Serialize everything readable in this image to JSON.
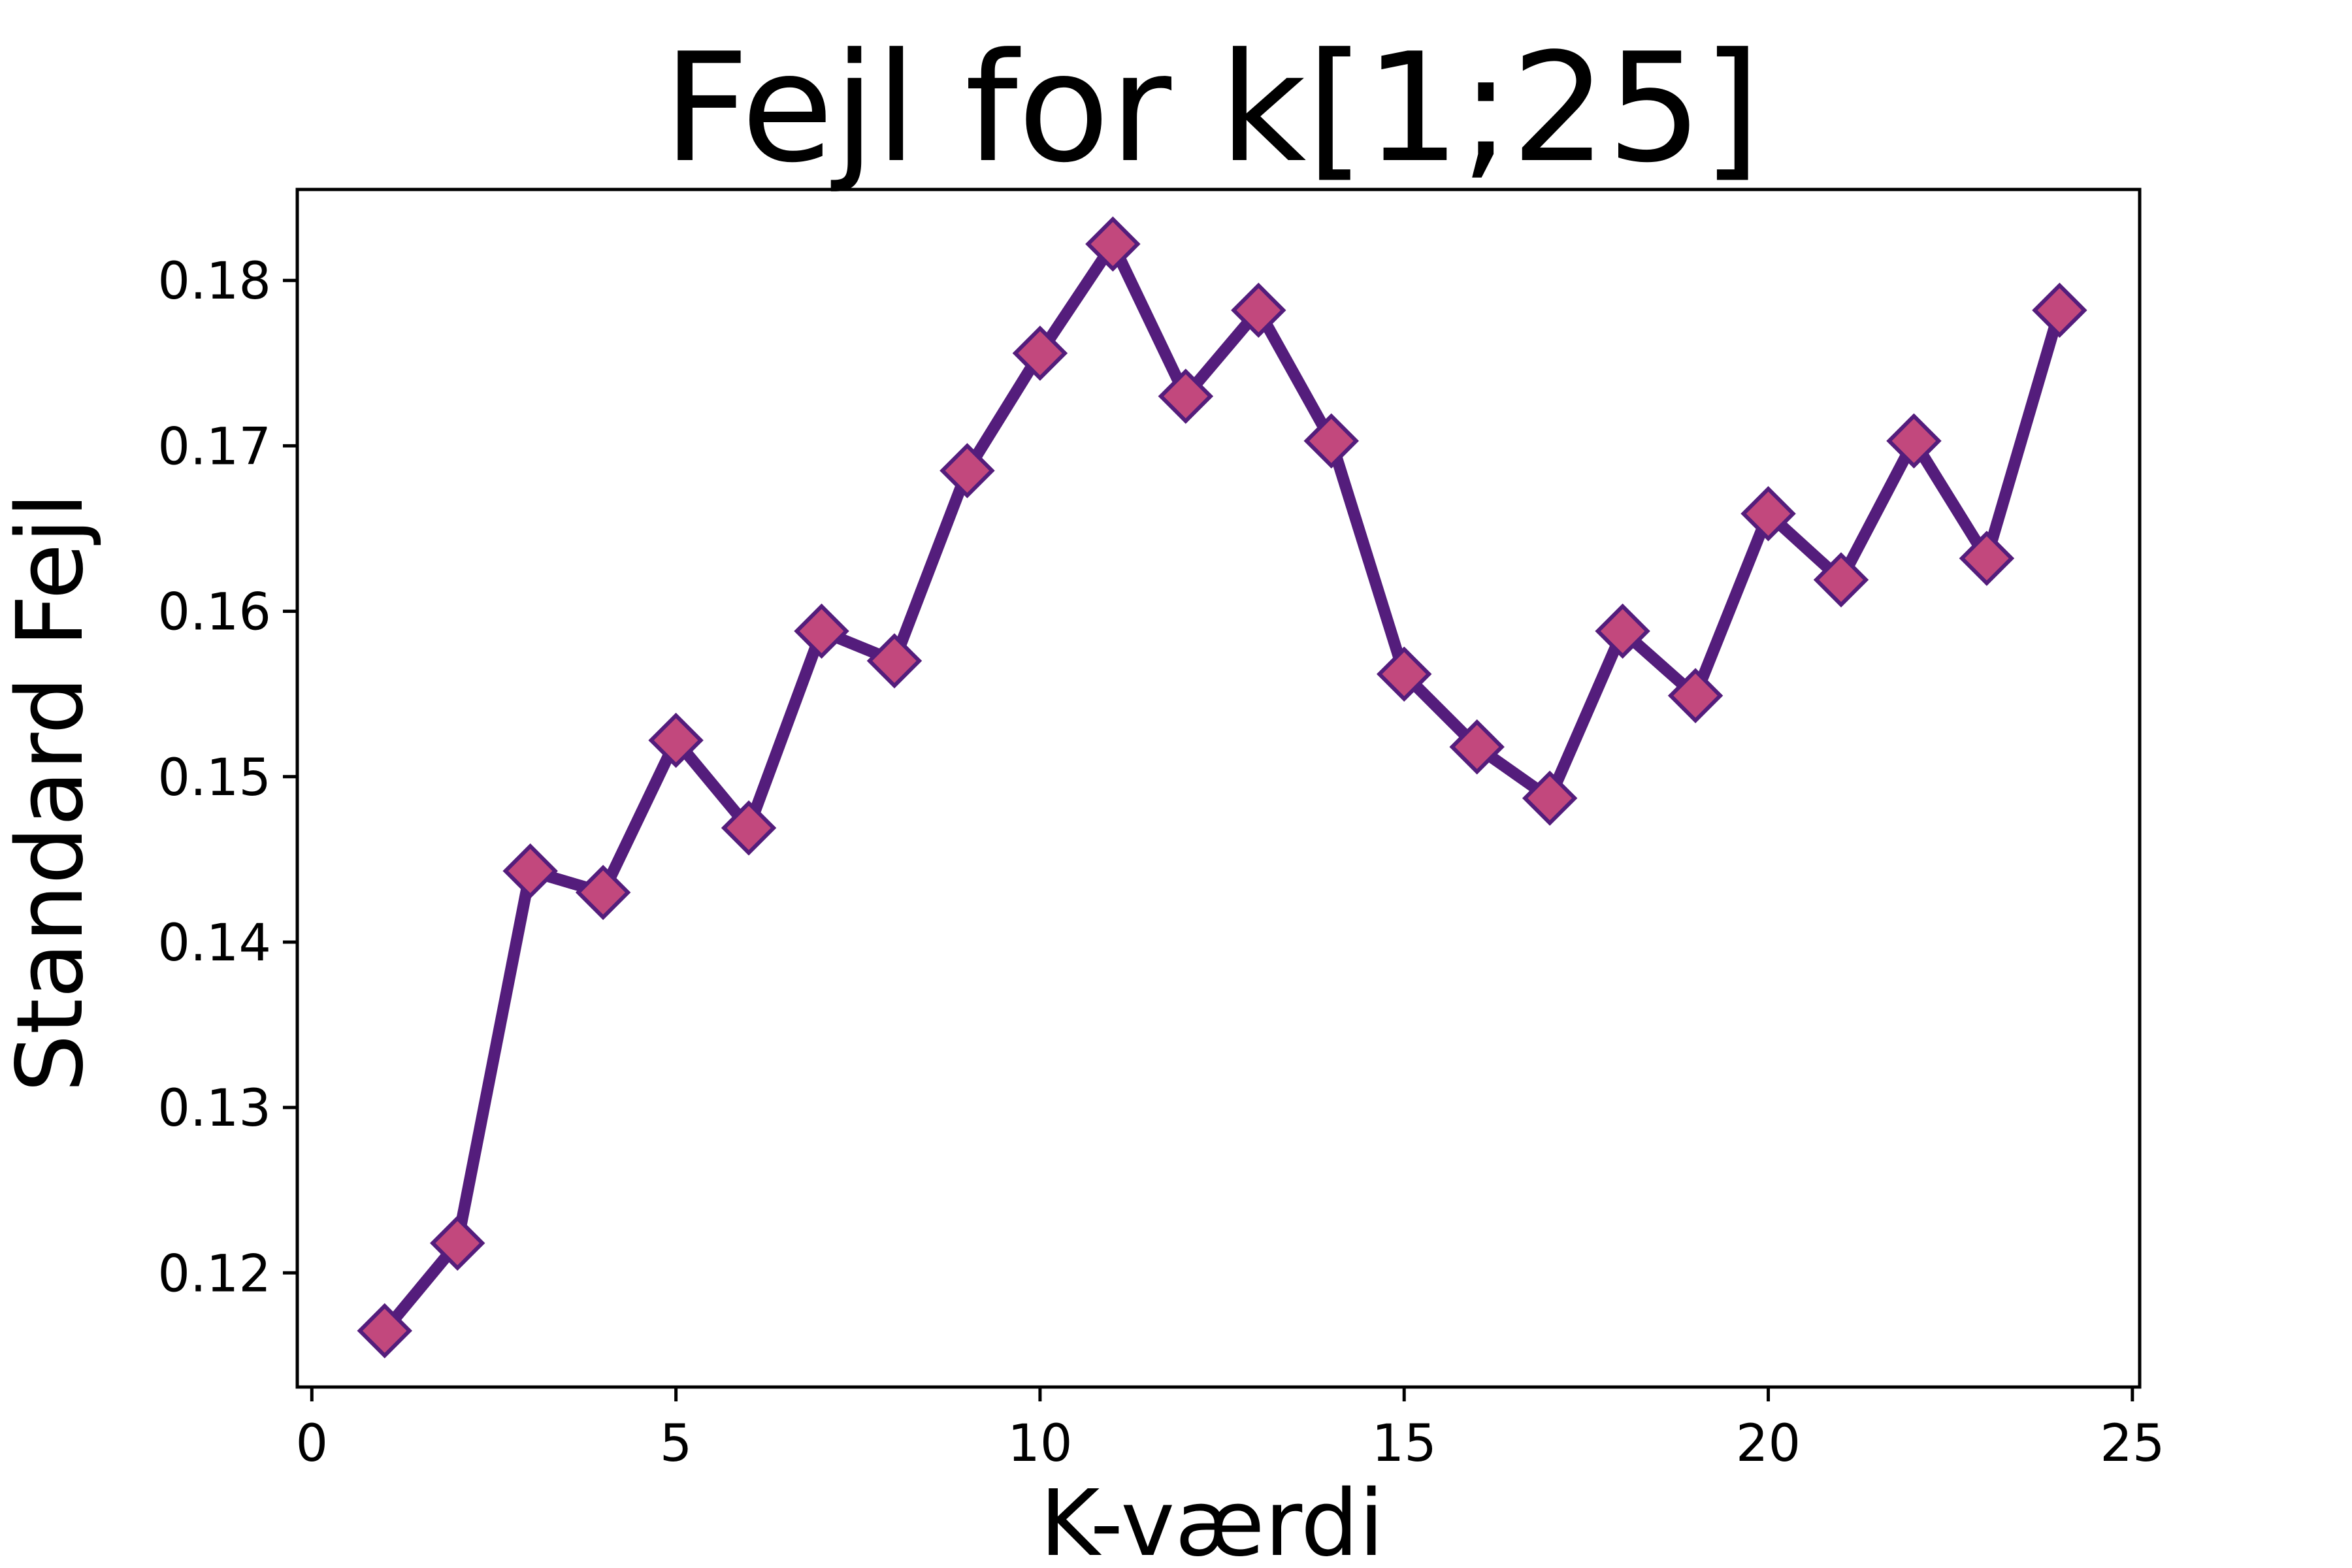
{
  "chart_data": {
    "type": "line",
    "title": "Fejl for k[1;25]",
    "xlabel": "K-værdi",
    "ylabel": "Standard Fejl",
    "xlim": [
      -0.2,
      25.1
    ],
    "ylim": [
      0.1131,
      0.1855
    ],
    "xticks": [
      0,
      5,
      10,
      15,
      20,
      25
    ],
    "xtick_labels": [
      "0",
      "5",
      "10",
      "15",
      "20",
      "25"
    ],
    "yticks": [
      0.12,
      0.13,
      0.14,
      0.15,
      0.16,
      0.17,
      0.18
    ],
    "ytick_labels": [
      "0.12",
      "0.13",
      "0.14",
      "0.15",
      "0.16",
      "0.17",
      "0.18"
    ],
    "grid": false,
    "line_color": "#541d7c",
    "marker": "diamond",
    "marker_face_color": "#c2487d",
    "marker_edge_color": "#541d7c",
    "series": [
      {
        "x": [
          1,
          2,
          3,
          4,
          5,
          6,
          7,
          8,
          9,
          10,
          11,
          12,
          13,
          14,
          15,
          16,
          17,
          18,
          19,
          20,
          21,
          22,
          23,
          24
        ],
        "y": [
          0.1165,
          0.1218,
          0.1443,
          0.143,
          0.1522,
          0.1469,
          0.1588,
          0.157,
          0.1685,
          0.1756,
          0.1822,
          0.173,
          0.1782,
          0.1703,
          0.1562,
          0.1518,
          0.1487,
          0.1588,
          0.1549,
          0.1659,
          0.1619,
          0.1703,
          0.1632,
          0.1782
        ]
      }
    ]
  }
}
